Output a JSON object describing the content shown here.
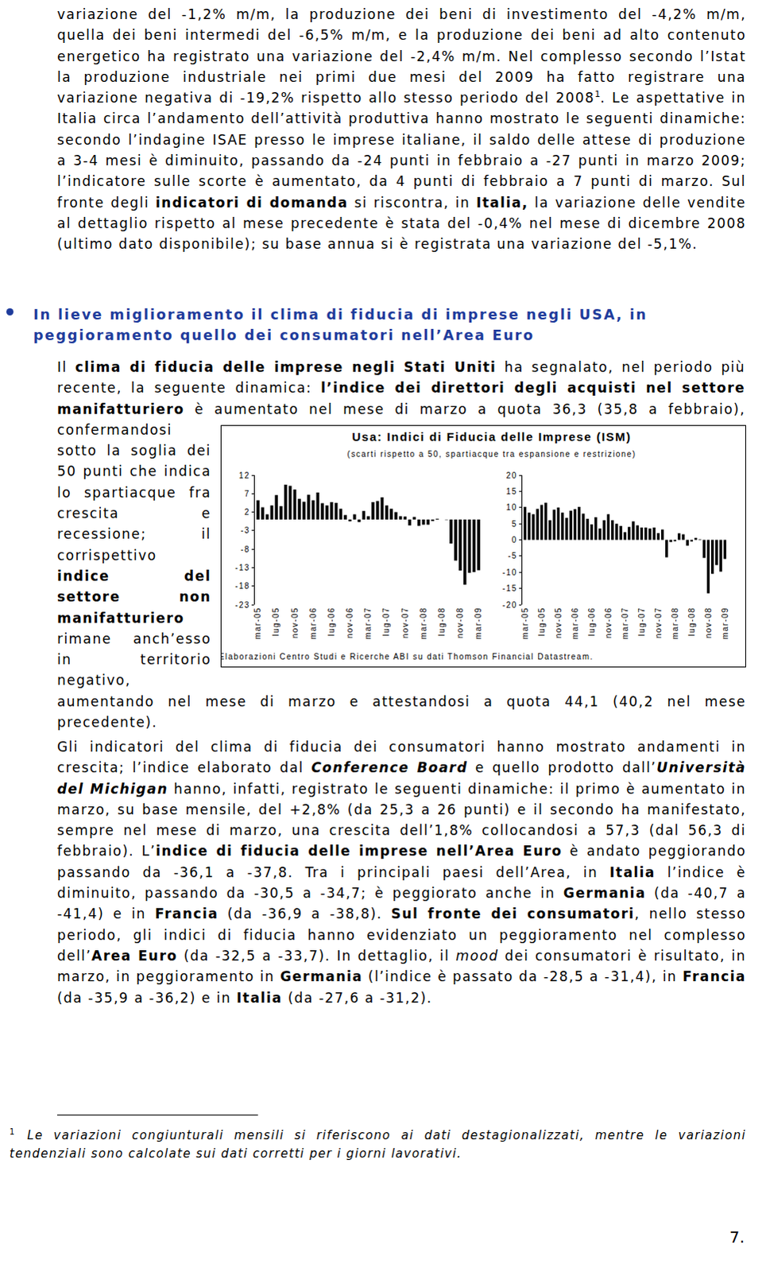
{
  "paragraph_1": [
    "variazione del -1,2% m/m, la produzione dei beni di investimento del -4,2% m/m, quella dei beni intermedi del -6,5% m/m, e la produzione dei beni ad alto contenuto energetico ha registrato una variazione del -2,4% m/m. Nel complesso secondo l’Istat la produzione industriale nei primi due mesi del 2009 ha fatto registrare una variazione negativa di -19,2% rispetto allo stesso periodo del 2008",
    {
      "text": "1",
      "style": "sup"
    },
    ". Le aspettative in Italia circa l’andamento dell’attività produttiva hanno mostrato le seguenti dinamiche: secondo l’indagine ISAE presso le imprese italiane, il saldo delle attese di produzione a 3-4 mesi è diminuito, passando da -24 punti in febbraio a -27 punti in marzo 2009; l’indicatore sulle scorte è aumentato, da 4 punti di febbraio a 7 punti di marzo. Sul fronte degli ",
    {
      "text": "indicatori di domanda",
      "style": "bold"
    },
    " si riscontra, in ",
    {
      "text": "Italia,",
      "style": "bold"
    },
    " la variazione delle vendite al dettaglio rispetto al mese precedente è stata del -0,4% nel mese di dicembre 2008 (ultimo dato disponibile); su base annua si è registrata una variazione del -5,1%."
  ],
  "heading": "In lieve miglioramento il clima di fiducia di imprese negli USA, in peggioramento quello dei consumatori nell’Area Euro",
  "paragraph_2": [
    "Il ",
    {
      "text": "clima di fiducia delle imprese negli Stati Uniti",
      "style": "bold"
    },
    " ha segnalato, nel periodo più recente, la seguente dinamica: ",
    {
      "text": "l’indice dei direttori degli acquisti nel settore manifatturiero",
      "style": "bold"
    },
    " è aumentato nel mese di marzo a quota 36,3 (35,8 a febbraio), confermandosi sotto la soglia dei 50 punti che indica lo spartiacque fra crescita e recessione; il corrispettivo ",
    {
      "text": "indice del settore non manifatturiero",
      "style": "bold"
    },
    " rimane anch’esso in territorio negativo, aumentando nel mese di marzo e attestandosi a quota 44,1 (40,2 nel mese precedente)."
  ],
  "figure": {
    "title": "Usa: Indici di Fiducia delle Imprese (ISM)",
    "subtitle": "(scarti rispetto a 50, spartiacque tra espansione e restrizione)",
    "source": "Fonte: Elaborazioni Centro Studi e Ricerche ABI su dati Thomson Financial Datastream."
  },
  "chart_data": [
    {
      "type": "bar",
      "color": "#000000",
      "categories": [
        "mar-05",
        null,
        null,
        null,
        "lug-05",
        null,
        null,
        null,
        "nov-05",
        null,
        null,
        null,
        "mar-06",
        null,
        null,
        null,
        "lug-06",
        null,
        null,
        null,
        "nov-06",
        null,
        null,
        null,
        "mar-07",
        null,
        null,
        null,
        "lug-07",
        null,
        null,
        null,
        "nov-07",
        null,
        null,
        null,
        "mar-08",
        null,
        null,
        null,
        "lug-08",
        null,
        null,
        null,
        "nov-08",
        null,
        null,
        null,
        "mar-09"
      ],
      "values": [
        5.2,
        3.3,
        1.4,
        3.8,
        6.6,
        3.6,
        9.4,
        9.1,
        8.1,
        5.6,
        4.8,
        6.7,
        5.2,
        7.3,
        4.4,
        3.8,
        4.7,
        4.5,
        2.9,
        1.2,
        -0.5,
        1.4,
        -0.7,
        2.3,
        0.9,
        4.7,
        5.0,
        6.0,
        3.8,
        2.9,
        2.0,
        0.9,
        0.8,
        -1.6,
        0.7,
        -1.7,
        -1.4,
        -1.4,
        -0.4,
        0.2,
        0.0,
        -0.1,
        -6.5,
        -11.1,
        -13.8,
        -17.6,
        -14.4,
        -14.2,
        -13.7
      ],
      "ylim": [
        -23,
        12
      ],
      "yticks": [
        12,
        7,
        2,
        -3,
        -8,
        -13,
        -18,
        -23
      ]
    },
    {
      "type": "bar",
      "color": "#000000",
      "categories": [
        "mar-05",
        null,
        null,
        null,
        "lug-05",
        null,
        null,
        null,
        "nov-05",
        null,
        null,
        null,
        "mar-06",
        null,
        null,
        null,
        "lug-06",
        null,
        null,
        null,
        "nov-06",
        null,
        null,
        null,
        "mar-07",
        null,
        null,
        null,
        "lug-07",
        null,
        null,
        null,
        "nov-07",
        null,
        null,
        null,
        "mar-08",
        null,
        null,
        null,
        "lug-08",
        null,
        null,
        null,
        "nov-08",
        null,
        null,
        null,
        "mar-09"
      ],
      "values": [
        10.2,
        8.4,
        7.9,
        9.6,
        10.8,
        11.5,
        6.1,
        9.3,
        10.0,
        8.4,
        6.8,
        9.0,
        9.5,
        10.2,
        8.1,
        6.5,
        4.8,
        7.0,
        3.5,
        6.1,
        7.9,
        6.1,
        5.0,
        4.3,
        2.4,
        4.0,
        5.7,
        4.5,
        3.8,
        3.8,
        3.5,
        3.8,
        2.1,
        3.2,
        -5.4,
        -0.7,
        -0.4,
        2.0,
        1.7,
        -1.8,
        -0.5,
        0.6,
        0.2,
        -5.6,
        -16.5,
        -10.5,
        -7.8,
        -9.8,
        -5.9
      ],
      "ylim": [
        -20,
        20
      ],
      "yticks": [
        20,
        15,
        10,
        5,
        0,
        -5,
        -10,
        -15,
        -20
      ]
    }
  ],
  "paragraph_3": [
    "Gli indicatori del clima di fiducia dei consumatori hanno mostrato andamenti in crescita; l’indice elaborato dal ",
    {
      "text": "Conference Board",
      "style": "bold-italic"
    },
    " e quello prodotto dall’",
    {
      "text": "Università del Michigan",
      "style": "bold-italic"
    },
    " hanno, infatti, registrato le seguenti dinamiche: il primo è aumentato in marzo, su base mensile, del +2,8% (da 25,3 a 26 punti) e il secondo ha manifestato, sempre nel mese di marzo, una crescita dell’1,8% collocandosi a 57,3 (dal 56,3 di febbraio). L’",
    {
      "text": "indice di fiducia delle imprese nell’Area Euro",
      "style": "bold"
    },
    " è andato peggiorando passando da -36,1 a -37,8. Tra i principali paesi dell’Area, in ",
    {
      "text": "Italia",
      "style": "bold"
    },
    " l’indice è diminuito, passando da -30,5 a -34,7; è peggiorato anche in ",
    {
      "text": "Germania",
      "style": "bold"
    },
    " (da -40,7 a -41,4) e in ",
    {
      "text": "Francia",
      "style": "bold"
    },
    " (da -36,9 a -38,8). ",
    {
      "text": "Sul fronte dei consumatori",
      "style": "bold"
    },
    ", nello stesso periodo, gli indici di fiducia hanno evidenziato un peggioramento nel complesso dell’",
    {
      "text": "Area Euro",
      "style": "bold"
    },
    " (da -32,5 a -33,7). In dettaglio, il ",
    {
      "text": "mood",
      "style": "italic"
    },
    " dei consumatori è risultato, in marzo, in peggioramento in ",
    {
      "text": "Germania",
      "style": "bold"
    },
    " (l’indice è passato da -28,5 a -31,4), in ",
    {
      "text": "Francia",
      "style": "bold"
    },
    " (da -35,9 a -36,2) e in ",
    {
      "text": "Italia",
      "style": "bold"
    },
    " (da -27,6 a -31,2)."
  ],
  "footnote": [
    {
      "text": "1",
      "style": "sup"
    },
    {
      "text": "Le variazioni congiunturali mensili si riferiscono ai dati destagionalizzati, mentre le variazioni tendenziali sono calcolate sui dati corretti per i giorni lavorativi.",
      "style": "italic"
    }
  ],
  "page_number": "7."
}
